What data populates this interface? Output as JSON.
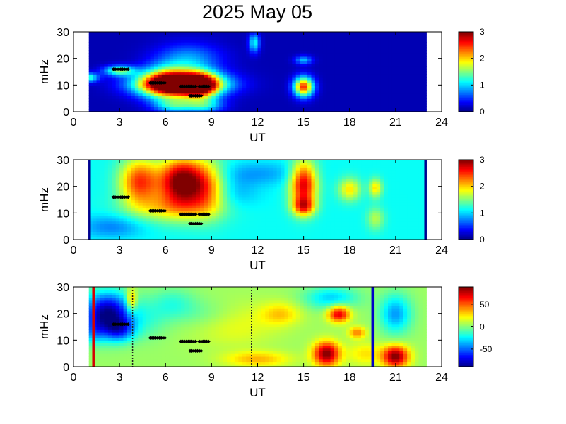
{
  "figure": {
    "title": "2025 May 05"
  },
  "chart_data": [
    {
      "type": "heatmap",
      "xlabel": "UT",
      "ylabel": "mHz",
      "xlim": [
        0,
        24
      ],
      "ylim": [
        0,
        30
      ],
      "x_ticks": [
        "0",
        "3",
        "6",
        "9",
        "12",
        "15",
        "18",
        "21",
        "24"
      ],
      "y_ticks": [
        "0",
        "10",
        "20",
        "30"
      ],
      "data_x_range": [
        1,
        23
      ],
      "colorbar": {
        "range": [
          0,
          3
        ],
        "ticks": [
          "0",
          "1",
          "2",
          "3"
        ]
      },
      "background_value": 0.15,
      "blobs": [
        {
          "t": 7.0,
          "f": 10.5,
          "st": 1.9,
          "sf": 3.0,
          "a": 3.0
        },
        {
          "t": 6.2,
          "f": 11.0,
          "st": 1.2,
          "sf": 4.2,
          "a": 1.6
        },
        {
          "t": 8.3,
          "f": 9.8,
          "st": 0.8,
          "sf": 3.5,
          "a": 1.8
        },
        {
          "t": 6.5,
          "f": 2.5,
          "st": 0.9,
          "sf": 1.8,
          "a": 0.9
        },
        {
          "t": 8.5,
          "f": 2.5,
          "st": 0.9,
          "sf": 1.8,
          "a": 0.9
        },
        {
          "t": 7.5,
          "f": 20.0,
          "st": 1.5,
          "sf": 4.0,
          "a": 0.7
        },
        {
          "t": 15.0,
          "f": 9.5,
          "st": 0.45,
          "sf": 2.6,
          "a": 2.4
        },
        {
          "t": 15.0,
          "f": 19.5,
          "st": 0.4,
          "sf": 1.2,
          "a": 0.8
        },
        {
          "t": 3.0,
          "f": 15.5,
          "st": 0.7,
          "sf": 1.3,
          "a": 1.3
        },
        {
          "t": 0.9,
          "f": 13.0,
          "st": 0.5,
          "sf": 1.2,
          "a": 1.2
        },
        {
          "t": 11.8,
          "f": 26.0,
          "st": 0.25,
          "sf": 2.5,
          "a": 1.0
        }
      ],
      "markers": [
        {
          "t": [
            2.6,
            3.6
          ],
          "f": 16.0
        },
        {
          "t": [
            5.0,
            6.0
          ],
          "f": 10.8
        },
        {
          "t": [
            7.0,
            8.0
          ],
          "f": 9.5
        },
        {
          "t": [
            8.2,
            8.9
          ],
          "f": 9.5
        },
        {
          "t": [
            7.6,
            8.4
          ],
          "f": 6.0
        }
      ],
      "vertical_lines": []
    },
    {
      "type": "heatmap",
      "xlabel": "UT",
      "ylabel": "mHz",
      "xlim": [
        0,
        24
      ],
      "ylim": [
        0,
        30
      ],
      "x_ticks": [
        "0",
        "3",
        "6",
        "9",
        "12",
        "15",
        "18",
        "21",
        "24"
      ],
      "y_ticks": [
        "0",
        "10",
        "20",
        "30"
      ],
      "data_x_range": [
        1,
        23
      ],
      "colorbar": {
        "range": [
          0,
          3
        ],
        "ticks": [
          "0",
          "1",
          "2",
          "3"
        ]
      },
      "background_value": 1.15,
      "blobs": [
        {
          "t": 7.0,
          "f": 22.0,
          "st": 1.0,
          "sf": 6.0,
          "a": 1.9
        },
        {
          "t": 4.3,
          "f": 22.0,
          "st": 0.9,
          "sf": 6.0,
          "a": 1.3
        },
        {
          "t": 8.7,
          "f": 20.0,
          "st": 0.9,
          "sf": 7.0,
          "a": 1.0
        },
        {
          "t": 6.5,
          "f": 12.0,
          "st": 2.0,
          "sf": 4.0,
          "a": 0.7
        },
        {
          "t": 15.0,
          "f": 21.0,
          "st": 0.6,
          "sf": 6.0,
          "a": 1.6
        },
        {
          "t": 15.0,
          "f": 12.5,
          "st": 0.5,
          "sf": 2.5,
          "a": 1.1
        },
        {
          "t": 18.0,
          "f": 19.0,
          "st": 0.5,
          "sf": 3.0,
          "a": 0.8
        },
        {
          "t": 19.7,
          "f": 19.5,
          "st": 0.3,
          "sf": 2.5,
          "a": 0.8
        },
        {
          "t": 19.7,
          "f": 8.0,
          "st": 0.4,
          "sf": 3.0,
          "a": 0.5
        },
        {
          "t": 12.0,
          "f": 25.0,
          "st": 2.0,
          "sf": 3.0,
          "a": -0.3
        },
        {
          "t": 2.5,
          "f": 5.0,
          "st": 1.5,
          "sf": 3.0,
          "a": -0.4
        },
        {
          "t": 10.5,
          "f": 18.0,
          "st": 1.2,
          "sf": 4.0,
          "a": -0.25
        }
      ],
      "markers": [
        {
          "t": [
            2.6,
            3.6
          ],
          "f": 16.0
        },
        {
          "t": [
            5.0,
            6.0
          ],
          "f": 10.8
        },
        {
          "t": [
            7.0,
            8.0
          ],
          "f": 9.5
        },
        {
          "t": [
            8.2,
            8.9
          ],
          "f": 9.5
        },
        {
          "t": [
            7.6,
            8.4
          ],
          "f": 6.0
        }
      ],
      "vertical_lines": [
        {
          "x": 1.05,
          "color": "#00008f",
          "style": "solid"
        },
        {
          "x": 22.95,
          "color": "#00008f",
          "style": "solid"
        }
      ]
    },
    {
      "type": "heatmap",
      "xlabel": "UT",
      "ylabel": "mHz",
      "xlim": [
        0,
        24
      ],
      "ylim": [
        0,
        30
      ],
      "x_ticks": [
        "0",
        "3",
        "6",
        "9",
        "12",
        "15",
        "18",
        "21",
        "24"
      ],
      "y_ticks": [
        "0",
        "10",
        "20",
        "30"
      ],
      "data_x_range": [
        1,
        23
      ],
      "colorbar": {
        "range": [
          -90,
          90
        ],
        "ticks": [
          "50",
          "0",
          "-50"
        ]
      },
      "background_value": 5,
      "blobs": [
        {
          "t": 2.2,
          "f": 20.0,
          "st": 1.1,
          "sf": 5.5,
          "a": -95
        },
        {
          "t": 3.0,
          "f": 14.0,
          "st": 0.7,
          "sf": 3.0,
          "a": -45
        },
        {
          "t": 1.3,
          "f": 13.0,
          "st": 0.5,
          "sf": 3.0,
          "a": -25
        },
        {
          "t": 3.8,
          "f": 25.0,
          "st": 0.25,
          "sf": 3.0,
          "a": 45
        },
        {
          "t": 4.8,
          "f": 18.0,
          "st": 1.0,
          "sf": 5.0,
          "a": -15
        },
        {
          "t": 6.5,
          "f": 24.0,
          "st": 1.0,
          "sf": 4.0,
          "a": -18
        },
        {
          "t": 16.5,
          "f": 5.0,
          "st": 0.6,
          "sf": 3.2,
          "a": 85
        },
        {
          "t": 17.3,
          "f": 20.0,
          "st": 0.5,
          "sf": 2.2,
          "a": 70
        },
        {
          "t": 21.0,
          "f": 4.0,
          "st": 0.6,
          "sf": 2.8,
          "a": 85
        },
        {
          "t": 12.0,
          "f": 3.0,
          "st": 1.5,
          "sf": 2.0,
          "a": 30
        },
        {
          "t": 13.5,
          "f": 20.0,
          "st": 0.9,
          "sf": 3.0,
          "a": 25
        },
        {
          "t": 18.5,
          "f": 13.0,
          "st": 0.4,
          "sf": 1.5,
          "a": 40
        },
        {
          "t": 21.0,
          "f": 20.0,
          "st": 0.7,
          "sf": 5.0,
          "a": -45
        },
        {
          "t": 16.8,
          "f": 26.0,
          "st": 1.2,
          "sf": 3.0,
          "a": -35
        },
        {
          "t": 10.5,
          "f": 16.0,
          "st": 2.0,
          "sf": 6.0,
          "a": 15
        },
        {
          "t": 8.5,
          "f": 20.0,
          "st": 1.5,
          "sf": 4.0,
          "a": -12
        },
        {
          "t": 19.0,
          "f": 5.0,
          "st": 0.8,
          "sf": 3.0,
          "a": 22
        }
      ],
      "markers": [
        {
          "t": [
            2.6,
            3.6
          ],
          "f": 16.0
        },
        {
          "t": [
            5.0,
            6.0
          ],
          "f": 10.8
        },
        {
          "t": [
            7.0,
            8.0
          ],
          "f": 9.5
        },
        {
          "t": [
            8.2,
            8.9
          ],
          "f": 9.5
        },
        {
          "t": [
            7.6,
            8.4
          ],
          "f": 6.0
        }
      ],
      "vertical_lines": [
        {
          "x": 1.3,
          "color": "#d40000",
          "style": "solid"
        },
        {
          "x": 3.85,
          "color": "#222222",
          "style": "dotted"
        },
        {
          "x": 11.6,
          "color": "#222222",
          "style": "dotted"
        },
        {
          "x": 19.5,
          "color": "#0000c8",
          "style": "solid"
        }
      ]
    }
  ]
}
